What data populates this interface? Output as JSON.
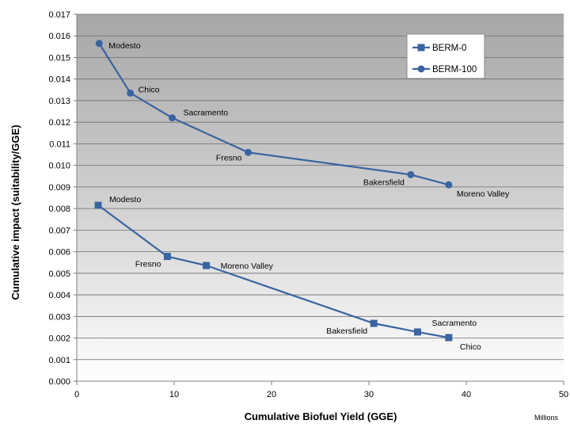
{
  "chart_data": {
    "type": "line",
    "title": "",
    "xlabel": "Cumulative Biofuel Yield (GGE)",
    "x_unit_note": "Millions",
    "ylabel": "Cumulative impact (suitability/GGE)",
    "xlim": [
      0,
      50
    ],
    "ylim": [
      0,
      0.017
    ],
    "x_ticks": [
      "0",
      "10",
      "20",
      "30",
      "40",
      "50"
    ],
    "y_ticks": [
      "0.000",
      "0.001",
      "0.002",
      "0.003",
      "0.004",
      "0.005",
      "0.006",
      "0.007",
      "0.008",
      "0.009",
      "0.010",
      "0.011",
      "0.012",
      "0.013",
      "0.014",
      "0.015",
      "0.016",
      "0.017"
    ],
    "grid": true,
    "legend_position": "top-right",
    "series_color": "#3a64a0",
    "series": [
      {
        "name": "BERM-0",
        "marker": "square",
        "points": [
          {
            "x": 2.2,
            "y": 0.00815,
            "label": "Modesto"
          },
          {
            "x": 9.3,
            "y": 0.00578,
            "label": "Fresno"
          },
          {
            "x": 13.3,
            "y": 0.00536,
            "label": "Moreno Valley"
          },
          {
            "x": 30.5,
            "y": 0.00268,
            "label": "Bakersfield"
          },
          {
            "x": 35.0,
            "y": 0.00228,
            "label": "Sacramento"
          },
          {
            "x": 38.2,
            "y": 0.00202,
            "label": "Chico"
          }
        ]
      },
      {
        "name": "BERM-100",
        "marker": "circle",
        "points": [
          {
            "x": 2.3,
            "y": 0.01565,
            "label": "Modesto"
          },
          {
            "x": 5.5,
            "y": 0.01335,
            "label": "Chico"
          },
          {
            "x": 9.8,
            "y": 0.0122,
            "label": "Sacramento"
          },
          {
            "x": 17.6,
            "y": 0.0106,
            "label": "Fresno"
          },
          {
            "x": 34.3,
            "y": 0.00957,
            "label": "Bakersfield"
          },
          {
            "x": 38.2,
            "y": 0.0091,
            "label": "Moreno Valley"
          }
        ]
      }
    ]
  }
}
